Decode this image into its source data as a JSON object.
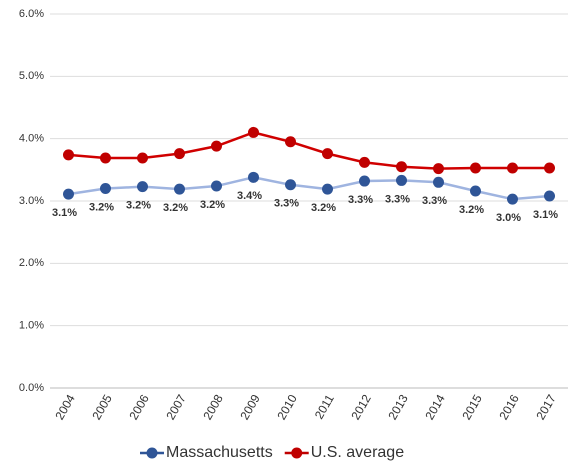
{
  "chart_data": {
    "type": "line",
    "categories": [
      "2004",
      "2005",
      "2006",
      "2007",
      "2008",
      "2009",
      "2010",
      "2011",
      "2012",
      "2013",
      "2014",
      "2015",
      "2016",
      "2017"
    ],
    "series": [
      {
        "name": "Massachusetts",
        "color": "#2f5597",
        "line_color": "#9fb4e0",
        "values": [
          3.11,
          3.2,
          3.23,
          3.19,
          3.24,
          3.38,
          3.26,
          3.19,
          3.32,
          3.33,
          3.3,
          3.16,
          3.03,
          3.08
        ],
        "value_labels": [
          "3.1%",
          "3.2%",
          "3.2%",
          "3.2%",
          "3.2%",
          "3.4%",
          "3.3%",
          "3.2%",
          "3.3%",
          "3.3%",
          "3.3%",
          "3.2%",
          "3.0%",
          "3.1%"
        ]
      },
      {
        "name": "U.S. average",
        "color": "#c00000",
        "line_color": "#d00000",
        "values": [
          3.74,
          3.69,
          3.69,
          3.76,
          3.88,
          4.1,
          3.95,
          3.76,
          3.62,
          3.55,
          3.52,
          3.53,
          3.53,
          3.53
        ]
      }
    ],
    "ylim": [
      0,
      6
    ],
    "yticks": [
      {
        "value": 0,
        "label": "0.0%"
      },
      {
        "value": 1,
        "label": "1.0%"
      },
      {
        "value": 2,
        "label": "2.0%"
      },
      {
        "value": 3,
        "label": "3.0%"
      },
      {
        "value": 4,
        "label": "4.0%"
      },
      {
        "value": 5,
        "label": "5.0%"
      },
      {
        "value": 6,
        "label": "6.0%"
      }
    ],
    "grid": true,
    "legend": "bottom"
  }
}
